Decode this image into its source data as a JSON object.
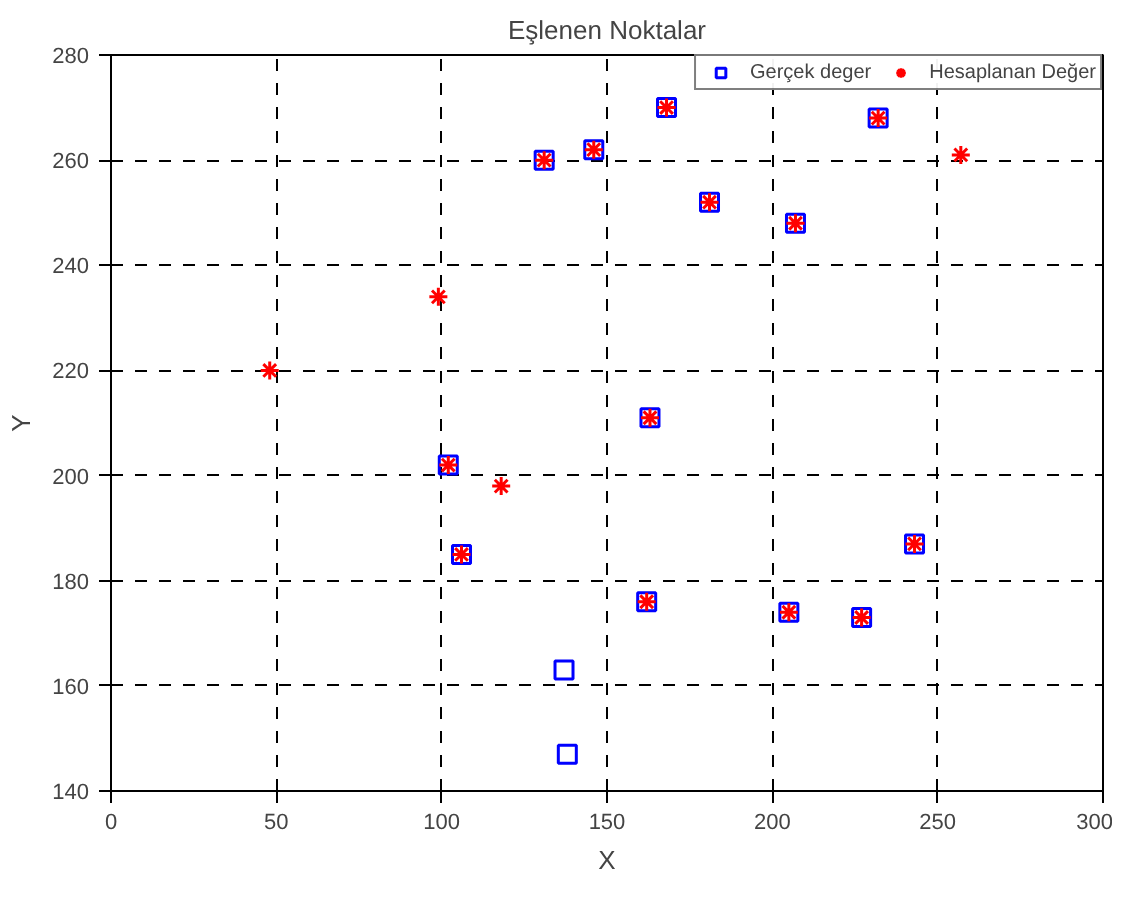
{
  "chart_data": {
    "type": "scatter",
    "title": "Eşlenen Noktalar",
    "xlabel": "X",
    "ylabel": "Y",
    "xlim": [
      0,
      300
    ],
    "ylim": [
      140,
      280
    ],
    "xticks": [
      0,
      50,
      100,
      150,
      200,
      250,
      300
    ],
    "yticks": [
      140,
      160,
      180,
      200,
      220,
      240,
      260,
      280
    ],
    "grid": true,
    "legend": "top right",
    "series": [
      {
        "name": "Gerçek deger",
        "color": "#0000ff",
        "marker": "square",
        "x": [
          131,
          146,
          168,
          181,
          232,
          207,
          102,
          163,
          106,
          162,
          205,
          227,
          243,
          137,
          138
        ],
        "values": [
          260,
          262,
          270,
          252,
          268,
          248,
          202,
          211,
          185,
          176,
          174,
          173,
          187,
          163,
          147
        ]
      },
      {
        "name": "Hesaplanan Değer",
        "color": "#ff0000",
        "marker": "cross",
        "x": [
          131,
          146,
          168,
          181,
          232,
          207,
          102,
          163,
          106,
          162,
          205,
          227,
          243,
          48,
          99,
          118,
          257
        ],
        "values": [
          260,
          262,
          270,
          252,
          268,
          248,
          202,
          211,
          185,
          176,
          174,
          173,
          187,
          220,
          234,
          198,
          261
        ]
      }
    ]
  }
}
